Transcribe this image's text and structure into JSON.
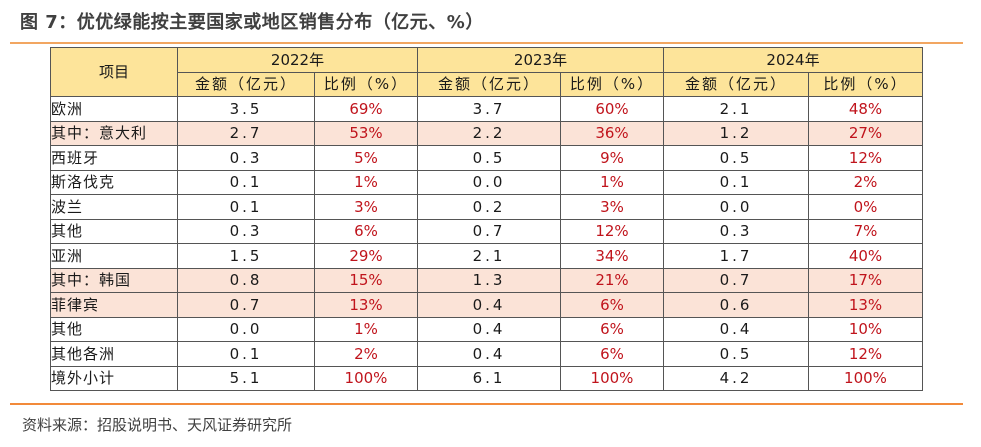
{
  "document": {
    "title": "图 7：优优绿能按主要国家或地区销售分布（亿元、%）",
    "source": "资料来源：招股说明书、天风证券研究所"
  },
  "colors": {
    "header_bg": "#fde49a",
    "highlight_row_bg": "#fbe3d7",
    "percent_text": "#c0141c",
    "rule_orange": "#f2a661"
  },
  "table": {
    "item_header": "项目",
    "years": [
      "2022年",
      "2023年",
      "2024年"
    ],
    "sub_headers": {
      "amount": "金额（亿元）",
      "ratio": "比例（%）"
    },
    "rows": [
      {
        "name": "欧洲",
        "highlight": false,
        "v": [
          "3.5",
          "69%",
          "3.7",
          "60%",
          "2.1",
          "48%"
        ]
      },
      {
        "name": "其中：意大利",
        "highlight": true,
        "v": [
          "2.7",
          "53%",
          "2.2",
          "36%",
          "1.2",
          "27%"
        ]
      },
      {
        "name": "西班牙",
        "highlight": false,
        "v": [
          "0.3",
          "5%",
          "0.5",
          "9%",
          "0.5",
          "12%"
        ]
      },
      {
        "name": "斯洛伐克",
        "highlight": false,
        "v": [
          "0.1",
          "1%",
          "0.0",
          "1%",
          "0.1",
          "2%"
        ]
      },
      {
        "name": "波兰",
        "highlight": false,
        "v": [
          "0.1",
          "3%",
          "0.2",
          "3%",
          "0.0",
          "0%"
        ]
      },
      {
        "name": "其他",
        "highlight": false,
        "v": [
          "0.3",
          "6%",
          "0.7",
          "12%",
          "0.3",
          "7%"
        ]
      },
      {
        "name": "亚洲",
        "highlight": false,
        "v": [
          "1.5",
          "29%",
          "2.1",
          "34%",
          "1.7",
          "40%"
        ]
      },
      {
        "name": "其中：韩国",
        "highlight": true,
        "v": [
          "0.8",
          "15%",
          "1.3",
          "21%",
          "0.7",
          "17%"
        ]
      },
      {
        "name": "菲律宾",
        "highlight": true,
        "v": [
          "0.7",
          "13%",
          "0.4",
          "6%",
          "0.6",
          "13%"
        ]
      },
      {
        "name": "其他",
        "highlight": false,
        "v": [
          "0.0",
          "1%",
          "0.4",
          "6%",
          "0.4",
          "10%"
        ]
      },
      {
        "name": "其他各洲",
        "highlight": false,
        "v": [
          "0.1",
          "2%",
          "0.4",
          "6%",
          "0.5",
          "12%"
        ]
      },
      {
        "name": "境外小计",
        "highlight": false,
        "v": [
          "5.1",
          "100%",
          "6.1",
          "100%",
          "4.2",
          "100%"
        ]
      }
    ]
  }
}
